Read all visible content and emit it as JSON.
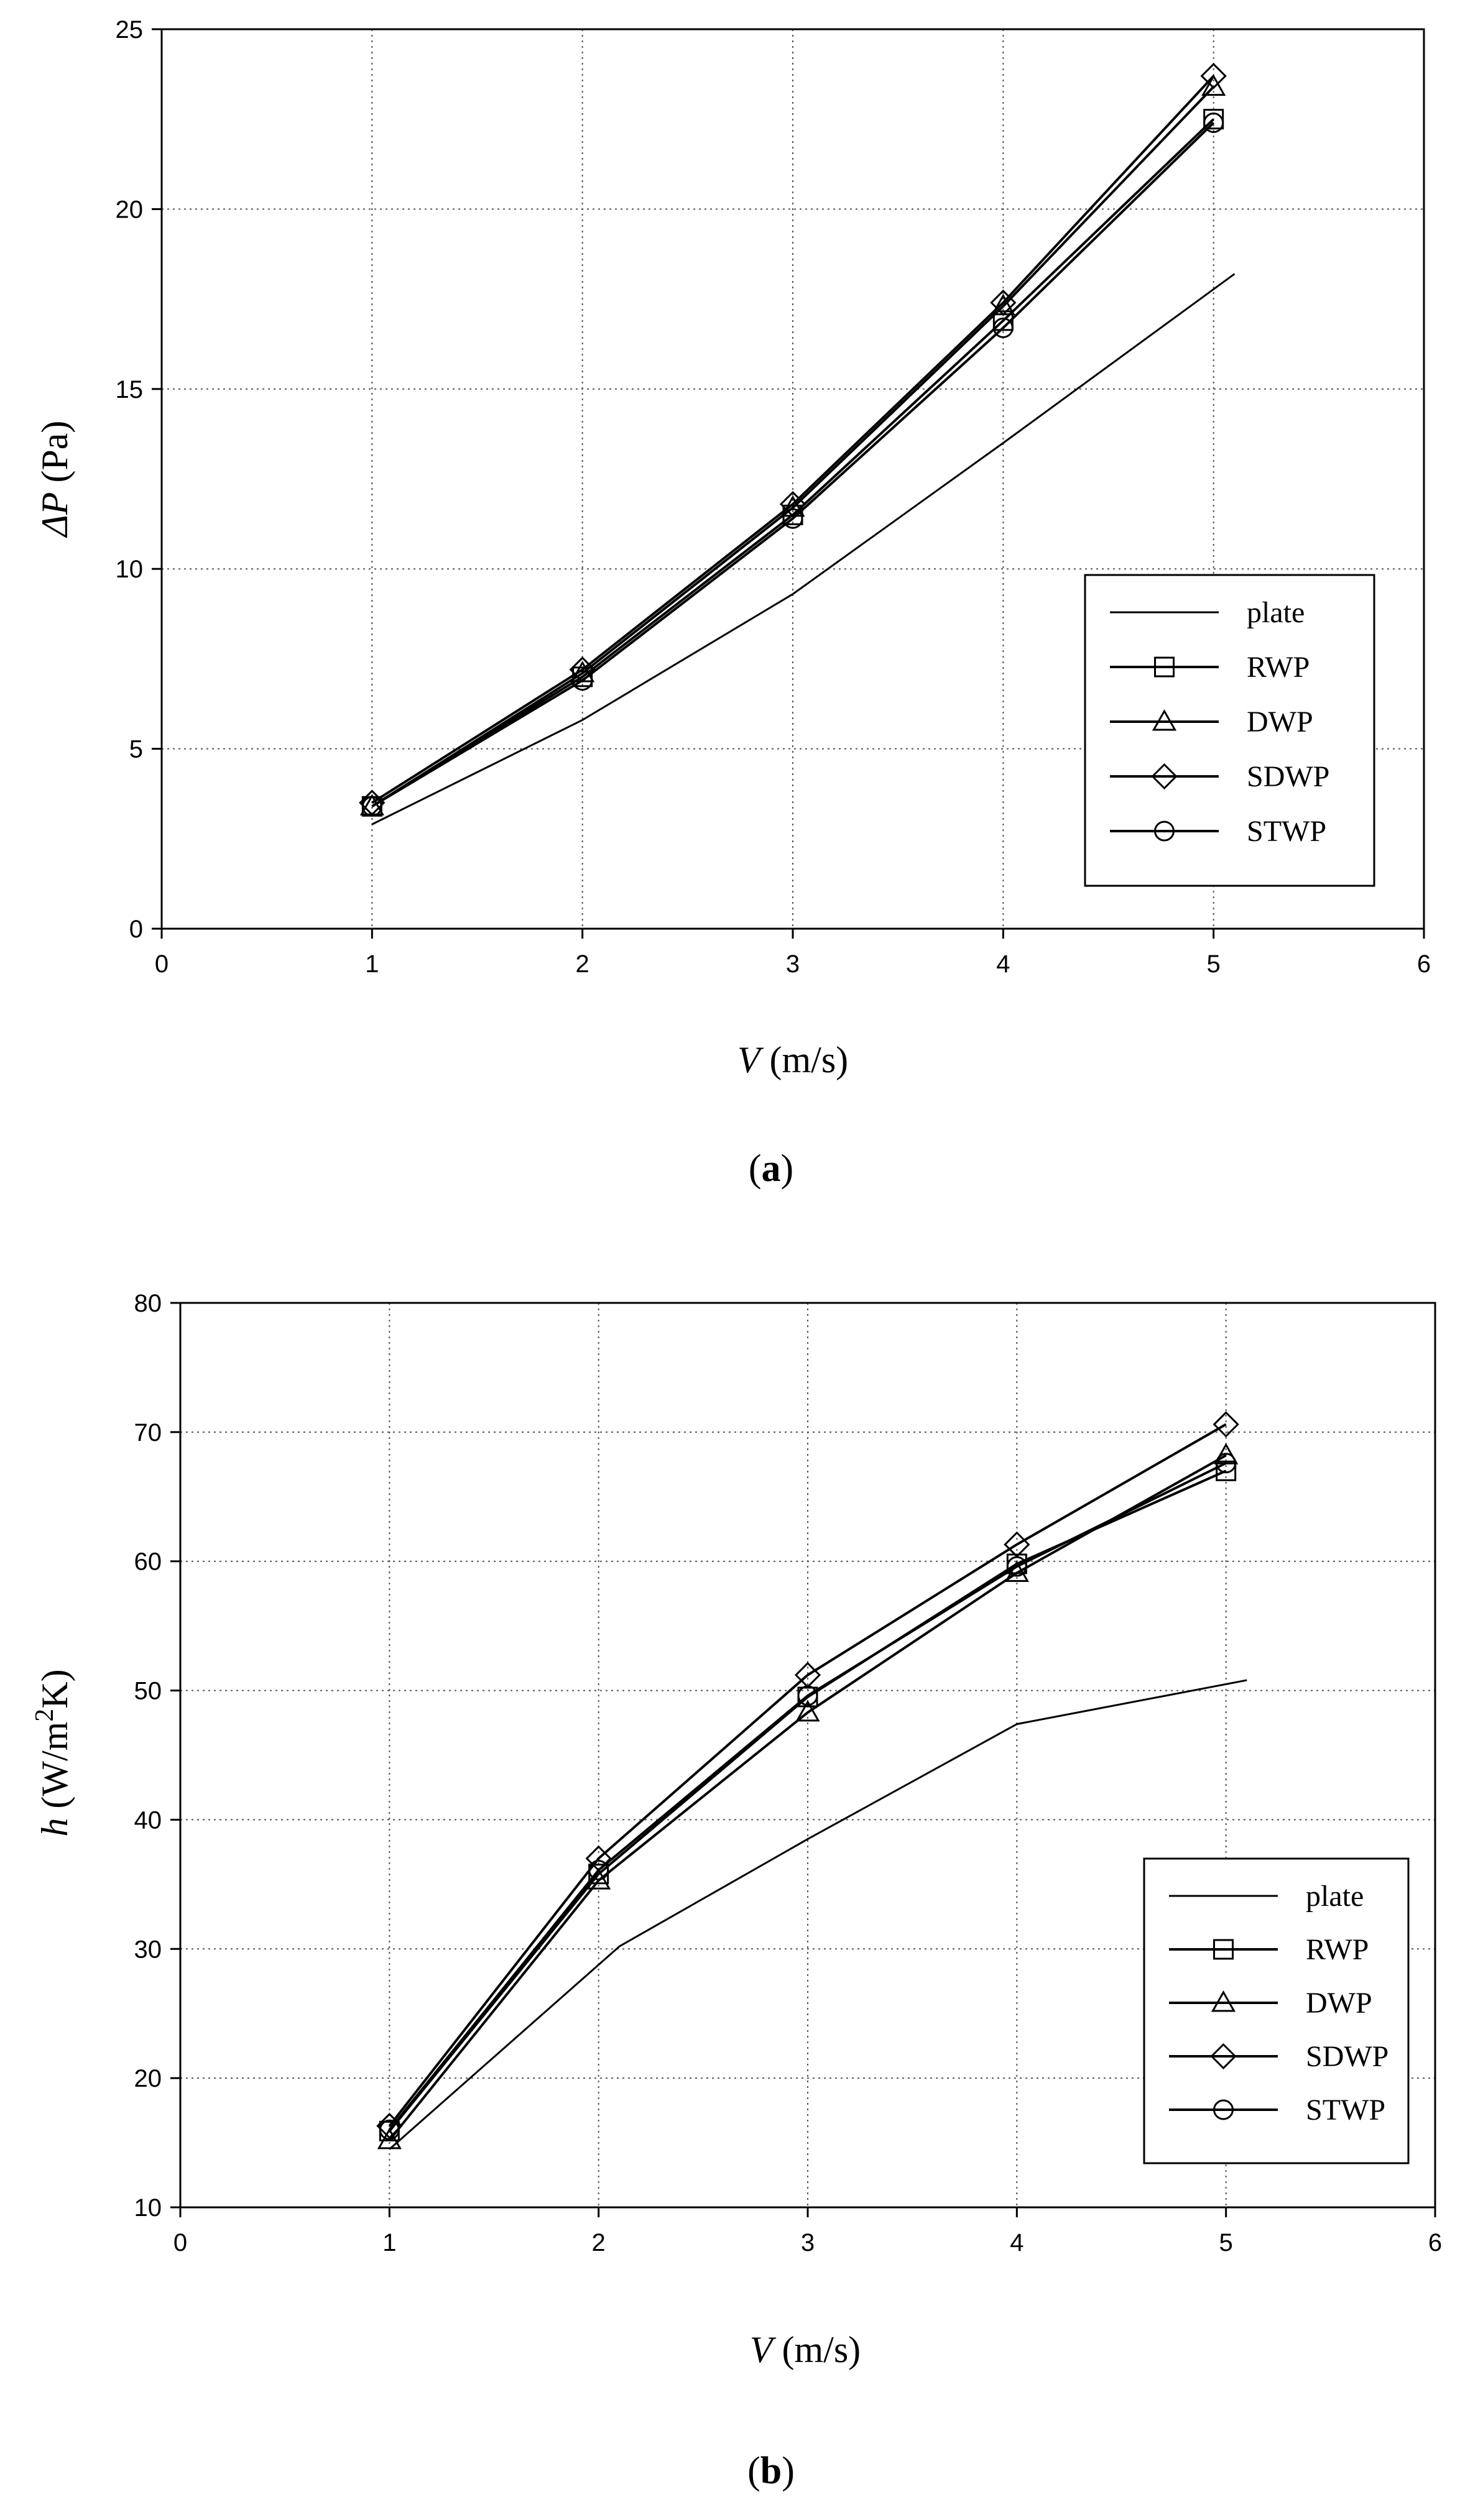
{
  "chart_data": [
    {
      "panel_label": "a",
      "type": "line",
      "x": [
        1,
        2,
        3,
        4,
        5
      ],
      "xlim": [
        0,
        6
      ],
      "xticks": [
        0,
        1,
        2,
        3,
        4,
        5,
        6
      ],
      "ylim": [
        0,
        25
      ],
      "yticks": [
        0,
        5,
        10,
        15,
        20,
        25
      ],
      "xlabel_var": "V",
      "xlabel_unit": " (m/s)",
      "ylabel_var": "ΔP",
      "ylabel_unit": " (Pa)",
      "grid": true,
      "legend_position": "right",
      "series": [
        {
          "name": "plate",
          "marker": "none",
          "x": [
            1,
            2,
            3,
            4,
            5.1
          ],
          "values": [
            2.9,
            5.8,
            9.3,
            13.5,
            18.2
          ]
        },
        {
          "name": "RWP",
          "marker": "square",
          "x": [
            1,
            2,
            3,
            4,
            5
          ],
          "values": [
            3.4,
            7.0,
            11.5,
            16.9,
            22.5
          ]
        },
        {
          "name": "DWP",
          "marker": "triangle",
          "x": [
            1,
            2,
            3,
            4,
            5
          ],
          "values": [
            3.4,
            7.1,
            11.7,
            17.3,
            23.4
          ]
        },
        {
          "name": "SDWP",
          "marker": "diamond",
          "x": [
            1,
            2,
            3,
            4,
            5
          ],
          "values": [
            3.5,
            7.2,
            11.8,
            17.4,
            23.7
          ]
        },
        {
          "name": "STWP",
          "marker": "circle",
          "x": [
            1,
            2,
            3,
            4,
            5
          ],
          "values": [
            3.4,
            6.9,
            11.4,
            16.7,
            22.4
          ]
        }
      ]
    },
    {
      "panel_label": "b",
      "type": "line",
      "x": [
        1,
        2,
        3,
        4,
        5
      ],
      "xlim": [
        0,
        6
      ],
      "xticks": [
        0,
        1,
        2,
        3,
        4,
        5,
        6
      ],
      "ylim": [
        10,
        80
      ],
      "yticks": [
        10,
        20,
        30,
        40,
        50,
        60,
        70,
        80
      ],
      "xlabel_var": "V",
      "xlabel_unit": " (m/s)",
      "ylabel_var": "h",
      "ylabel_unit_pre": " (W/m",
      "ylabel_unit_sup": "2",
      "ylabel_unit_post": "K)",
      "grid": true,
      "legend_position": "lower-right",
      "series": [
        {
          "name": "plate",
          "marker": "none",
          "x": [
            1,
            2.1,
            3,
            4,
            5.1
          ],
          "values": [
            14.5,
            30.2,
            38.5,
            47.4,
            50.8
          ]
        },
        {
          "name": "RWP",
          "marker": "square",
          "x": [
            1,
            2,
            3,
            4,
            5
          ],
          "values": [
            15.9,
            35.8,
            49.5,
            59.8,
            67.0
          ]
        },
        {
          "name": "DWP",
          "marker": "triangle",
          "x": [
            1,
            2,
            3,
            4,
            5
          ],
          "values": [
            15.2,
            35.3,
            48.3,
            59.1,
            68.2
          ]
        },
        {
          "name": "SDWP",
          "marker": "diamond",
          "x": [
            1,
            2,
            3,
            4,
            5
          ],
          "values": [
            16.3,
            37.0,
            51.2,
            61.3,
            70.6
          ]
        },
        {
          "name": "STWP",
          "marker": "circle",
          "x": [
            1,
            2,
            3,
            4,
            5
          ],
          "values": [
            16.0,
            36.1,
            49.6,
            59.6,
            67.6
          ]
        }
      ]
    }
  ]
}
